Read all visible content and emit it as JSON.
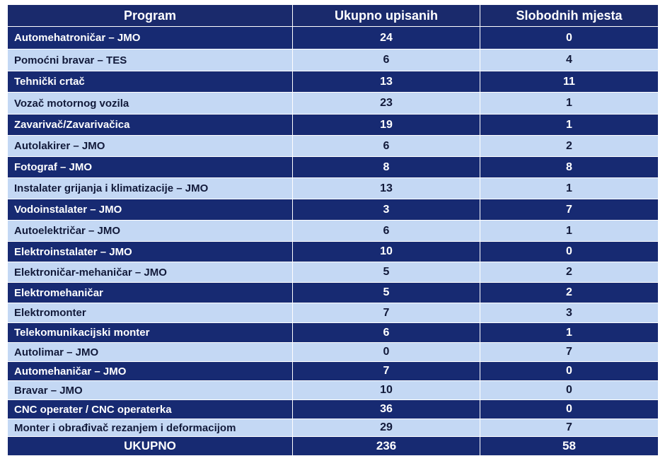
{
  "chart_data": {
    "type": "table",
    "columns": [
      "Program",
      "Ukupno upisanih",
      "Slobodnih mjesta"
    ],
    "rows": [
      [
        "Automehatroničar – JMO",
        "24",
        "0"
      ],
      [
        "Pomoćni bravar – TES",
        "6",
        "4"
      ],
      [
        "Tehnički crtač",
        "13",
        "11"
      ],
      [
        "Vozač motornog vozila",
        "23",
        "1"
      ],
      [
        "Zavarivač/Zavarivačica",
        "19",
        "1"
      ],
      [
        "Autolakirer – JMO",
        "6",
        "2"
      ],
      [
        "Fotograf – JMO",
        "8",
        "8"
      ],
      [
        "Instalater grijanja i klimatizacije – JMO",
        "13",
        "1"
      ],
      [
        "Vodoinstalater – JMO",
        "3",
        "7"
      ],
      [
        "Autoelektričar – JMO",
        "6",
        "1"
      ],
      [
        "Elektroinstalater – JMO",
        "10",
        "0"
      ],
      [
        "Elektroničar-mehaničar – JMO",
        "5",
        "2"
      ],
      [
        "Elektromehaničar",
        "5",
        "2"
      ],
      [
        "Elektromonter",
        "7",
        "3"
      ],
      [
        "Telekomunikacijski monter",
        "6",
        "1"
      ],
      [
        "Autolimar – JMO",
        "0",
        "7"
      ],
      [
        "Automehaničar – JMO",
        "7",
        "0"
      ],
      [
        "Bravar – JMO",
        "10",
        "0"
      ],
      [
        "CNC operater / CNC operaterka",
        "36",
        "0"
      ],
      [
        "Monter i obrađivač rezanjem i deformacijom",
        "29",
        "7"
      ]
    ],
    "total": [
      "UKUPNO",
      "236",
      "58"
    ]
  }
}
